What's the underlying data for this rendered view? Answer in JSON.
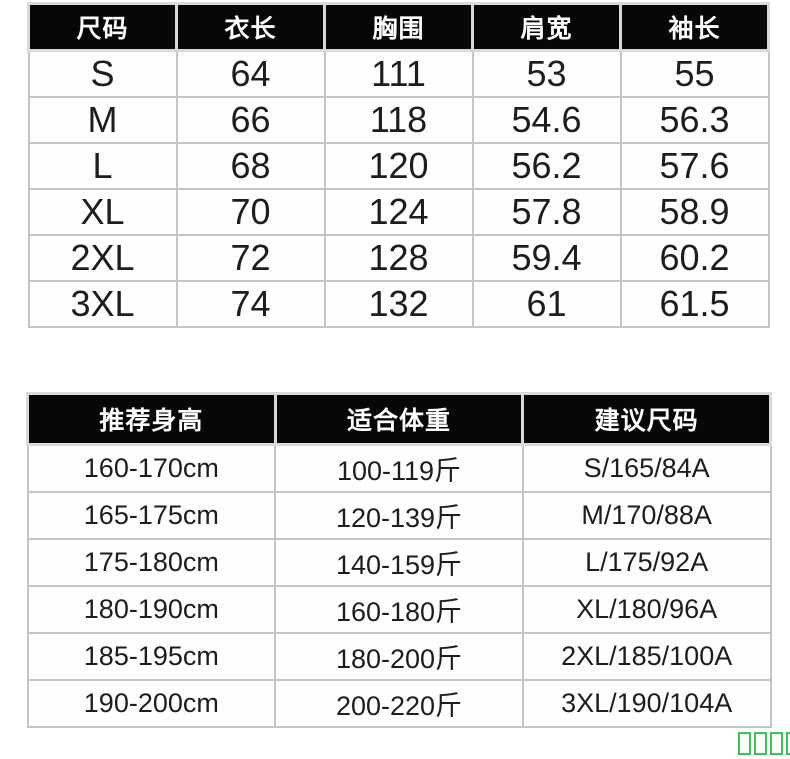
{
  "colors": {
    "header_bg": "#070707",
    "header_text": "#ffffff",
    "body_text": "#1d1d1d",
    "grid_border": "#c5c5c5",
    "watermark_green": "#3dc257"
  },
  "size_table": {
    "headers": [
      "尺码",
      "衣长",
      "胸围",
      "肩宽",
      "袖长"
    ],
    "rows": [
      [
        "S",
        "64",
        "111",
        "53",
        "55"
      ],
      [
        "M",
        "66",
        "118",
        "54.6",
        "56.3"
      ],
      [
        "L",
        "68",
        "120",
        "56.2",
        "57.6"
      ],
      [
        "XL",
        "70",
        "124",
        "57.8",
        "58.9"
      ],
      [
        "2XL",
        "72",
        "128",
        "59.4",
        "60.2"
      ],
      [
        "3XL",
        "74",
        "132",
        "61",
        "61.5"
      ]
    ]
  },
  "fit_table": {
    "headers": [
      "推荐身高",
      "适合体重",
      "建议尺码"
    ],
    "rows": [
      [
        "160-170cm",
        "100-119斤",
        "S/165/84A"
      ],
      [
        "165-175cm",
        "120-139斤",
        "M/170/88A"
      ],
      [
        "175-180cm",
        "140-159斤",
        "L/175/92A"
      ],
      [
        "180-190cm",
        "160-180斤",
        "XL/180/96A"
      ],
      [
        "185-195cm",
        "180-200斤",
        "2XL/185/100A"
      ],
      [
        "190-200cm",
        "200-220斤",
        "3XL/190/104A"
      ]
    ]
  },
  "watermark": {
    "box_count": 4
  }
}
